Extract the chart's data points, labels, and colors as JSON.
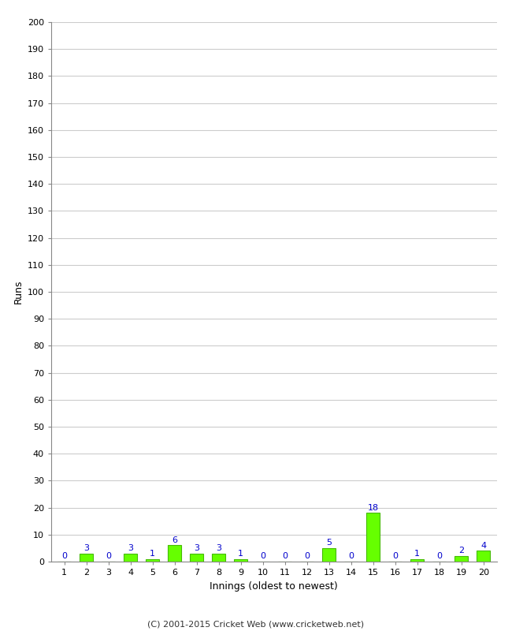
{
  "xlabel": "Innings (oldest to newest)",
  "ylabel": "Runs",
  "categories": [
    1,
    2,
    3,
    4,
    5,
    6,
    7,
    8,
    9,
    10,
    11,
    12,
    13,
    14,
    15,
    16,
    17,
    18,
    19,
    20
  ],
  "values": [
    0,
    3,
    0,
    3,
    1,
    6,
    3,
    3,
    1,
    0,
    0,
    0,
    5,
    0,
    18,
    0,
    1,
    0,
    2,
    4
  ],
  "bar_color": "#66ff00",
  "bar_edge_color": "#44bb00",
  "label_color": "#0000cc",
  "background_color": "#ffffff",
  "ylim": [
    0,
    200
  ],
  "yticks": [
    0,
    10,
    20,
    30,
    40,
    50,
    60,
    70,
    80,
    90,
    100,
    110,
    120,
    130,
    140,
    150,
    160,
    170,
    180,
    190,
    200
  ],
  "footer": "(C) 2001-2015 Cricket Web (www.cricketweb.net)",
  "grid_color": "#cccccc"
}
